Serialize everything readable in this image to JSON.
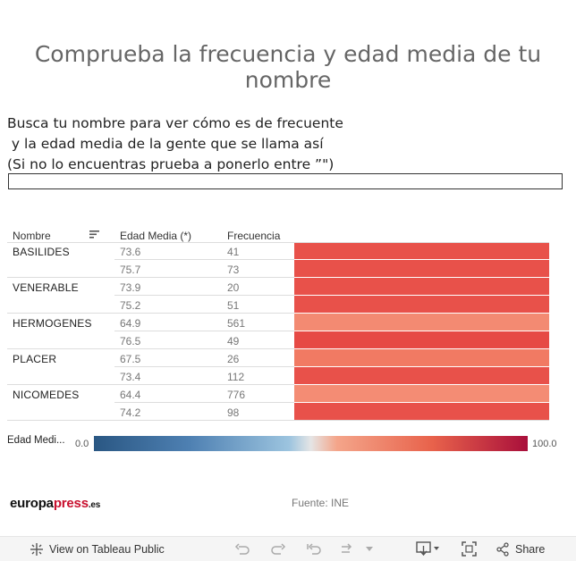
{
  "title": "Comprueba la frecuencia y edad media de tu nombre",
  "instructions": {
    "line1": "Busca tu nombre para ver cómo es de frecuente",
    "line2": " y la edad media de la gente que se llama así",
    "line3": "(Si no lo encuentras prueba a ponerlo entre ”\")"
  },
  "search": {
    "value": "",
    "placeholder": ""
  },
  "table": {
    "headers": {
      "name": "Nombre",
      "edad": "Edad Media (*)",
      "freq": "Frecuencia"
    },
    "rows": [
      {
        "name": "BASILIDES",
        "edad": "73.6",
        "freq": "41",
        "color": "#e8514a"
      },
      {
        "name": "",
        "edad": "75.7",
        "freq": "73",
        "color": "#e8514a"
      },
      {
        "name": "VENERABLE",
        "edad": "73.9",
        "freq": "20",
        "color": "#e8514a"
      },
      {
        "name": "",
        "edad": "75.2",
        "freq": "51",
        "color": "#e8514a"
      },
      {
        "name": "HERMOGENES",
        "edad": "64.9",
        "freq": "561",
        "color": "#f38a72"
      },
      {
        "name": "",
        "edad": "76.5",
        "freq": "49",
        "color": "#e64a45"
      },
      {
        "name": "PLACER",
        "edad": "67.5",
        "freq": "26",
        "color": "#f17a63"
      },
      {
        "name": "",
        "edad": "73.4",
        "freq": "112",
        "color": "#e8514a"
      },
      {
        "name": "NICOMEDES",
        "edad": "64.4",
        "freq": "776",
        "color": "#f48c74"
      },
      {
        "name": "",
        "edad": "74.2",
        "freq": "98",
        "color": "#e8514a"
      }
    ]
  },
  "legend": {
    "label": "Edad Medi...",
    "min": "0.0",
    "max": "100.0"
  },
  "footer": {
    "logo_main": "europa",
    "logo_red": "press",
    "logo_tld": ".es",
    "source": "Fuente: INE"
  },
  "toolbar": {
    "view_label": "View on Tableau Public",
    "share_label": "Share"
  }
}
